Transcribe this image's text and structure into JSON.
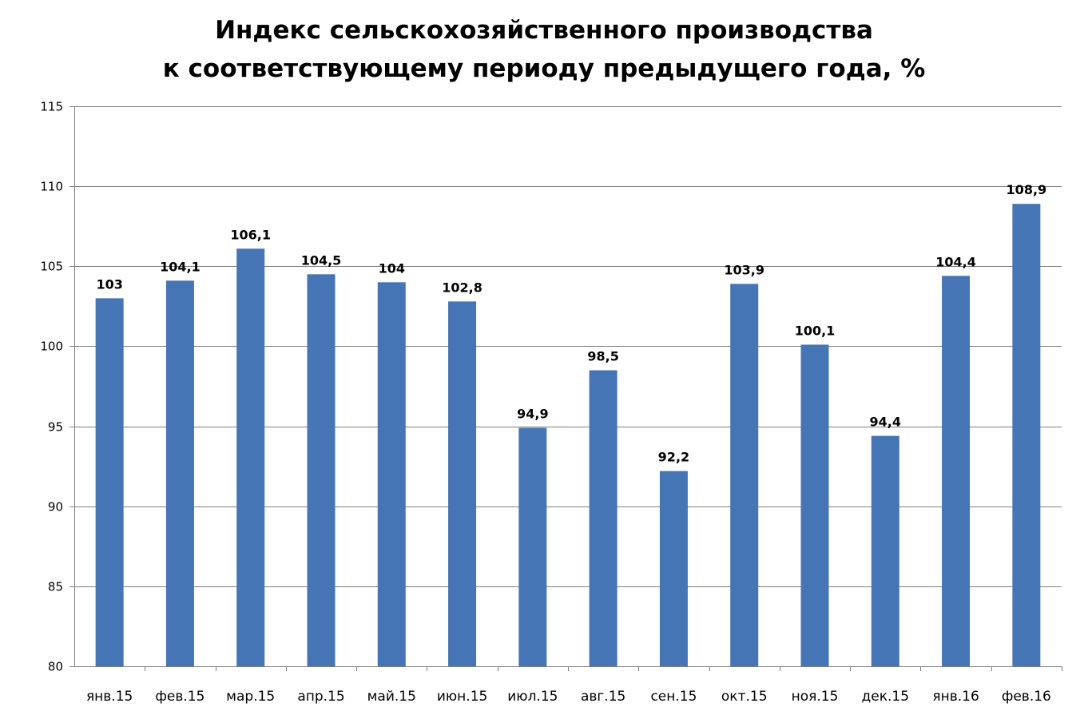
{
  "chart_data": {
    "type": "bar",
    "title_line1": "Индекс сельскохозяйственного производства",
    "title_line2": "к  соответствующему периоду предыдущего года, %",
    "categories": [
      "янв.15",
      "фев.15",
      "мар.15",
      "апр.15",
      "май.15",
      "июн.15",
      "июл.15",
      "авг.15",
      "сен.15",
      "окт.15",
      "ноя.15",
      "дек.15",
      "янв.16",
      "фев.16"
    ],
    "values": [
      103,
      104.1,
      106.1,
      104.5,
      104,
      102.8,
      94.9,
      98.5,
      92.2,
      103.9,
      100.1,
      94.4,
      104.4,
      108.9
    ],
    "data_labels": [
      "103",
      "104,1",
      "106,1",
      "104,5",
      "104",
      "102,8",
      "94,9",
      "98,5",
      "92,2",
      "103,9",
      "100,1",
      "94,4",
      "104,4",
      "108,9"
    ],
    "ylim": [
      80,
      115
    ],
    "yticks": [
      80,
      85,
      90,
      95,
      100,
      105,
      110,
      115
    ],
    "grid": true,
    "legend": "none",
    "colors": {
      "bar": "#4575B4",
      "grid": "#7F7F7F",
      "axis": "#7F7F7F"
    }
  }
}
